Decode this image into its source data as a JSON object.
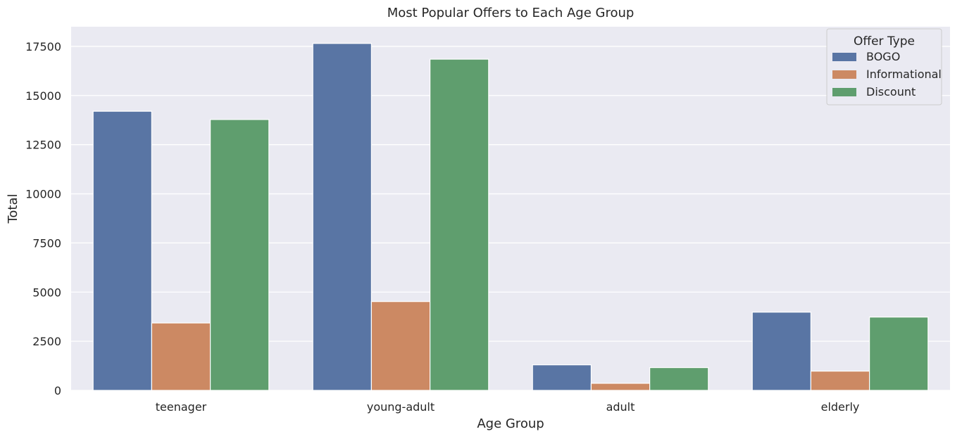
{
  "chart_data": {
    "type": "bar",
    "title": "Most Popular Offers to Each Age Group",
    "xlabel": "Age Group",
    "ylabel": "Total",
    "categories": [
      "teenager",
      "young-adult",
      "adult",
      "elderly"
    ],
    "ylim": [
      0,
      18500
    ],
    "yticks": [
      0,
      2500,
      5000,
      7500,
      10000,
      12500,
      15000,
      17500
    ],
    "ytick_labels": [
      "0",
      "2500",
      "5000",
      "7500",
      "10000",
      "12500",
      "15000",
      "17500"
    ],
    "grid": true,
    "legend": {
      "title": "Offer Type",
      "placement": "top-right"
    },
    "series": [
      {
        "name": "BOGO",
        "color": "#5975a4",
        "values": [
          14200,
          17650,
          1300,
          3980
        ]
      },
      {
        "name": "Informational",
        "color": "#cc8963",
        "values": [
          3430,
          4520,
          360,
          980
        ]
      },
      {
        "name": "Discount",
        "color": "#5f9e6e",
        "values": [
          13780,
          16850,
          1160,
          3730
        ]
      }
    ]
  }
}
